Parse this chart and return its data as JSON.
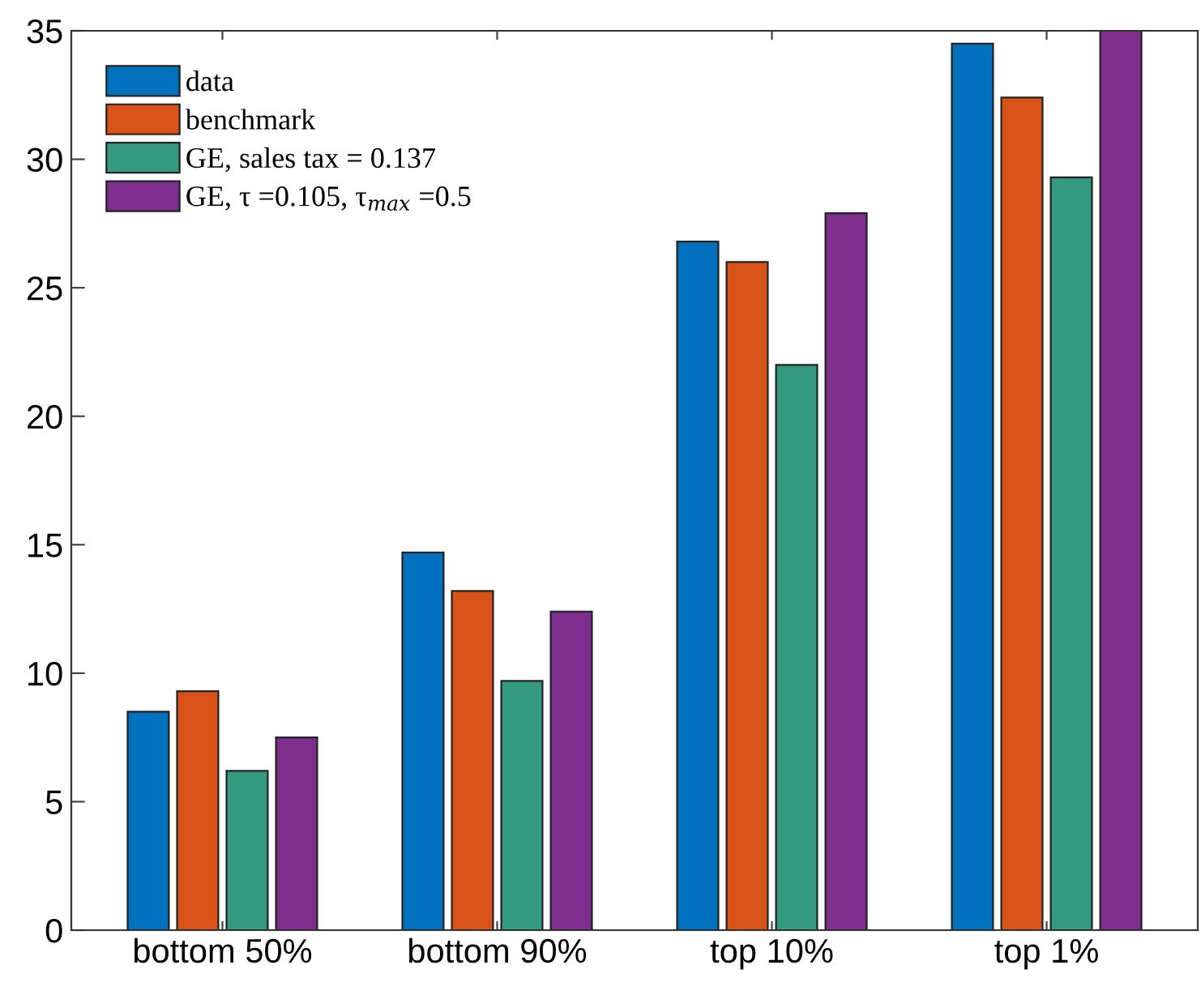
{
  "chart_data": {
    "type": "bar",
    "categories": [
      "bottom 50%",
      "bottom 90%",
      "top 10%",
      "top 1%"
    ],
    "series": [
      {
        "name": "data",
        "color": "#0072bd",
        "values": [
          8.5,
          14.7,
          26.8,
          34.5
        ]
      },
      {
        "name": "benchmark",
        "color": "#d95319",
        "values": [
          9.3,
          13.2,
          26.0,
          32.4
        ]
      },
      {
        "name": "GE, sales tax = 0.137",
        "color": "#339a80",
        "values": [
          6.2,
          9.7,
          22.0,
          29.3
        ]
      },
      {
        "name": "GE, τ =0.105, τ$_{max}$ =0.5",
        "color": "#7e2f8e",
        "values": [
          7.5,
          12.4,
          27.9,
          35.0
        ]
      }
    ],
    "ylim": [
      0,
      35
    ],
    "yticks": [
      0,
      5,
      10,
      15,
      20,
      25,
      30,
      35
    ],
    "grid": false,
    "legend": "top left"
  }
}
